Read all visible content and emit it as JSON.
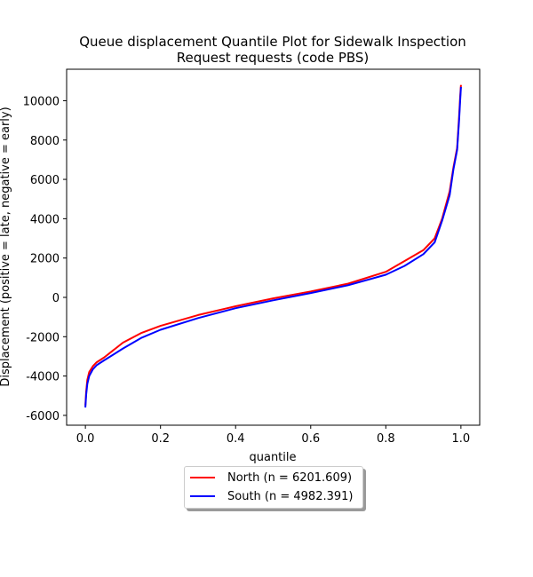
{
  "chart_data": {
    "type": "line",
    "title_line1": "Queue displacement Quantile Plot for Sidewalk Inspection",
    "title_line2": "Request  requests (code PBS)",
    "xlabel": "quantile",
    "ylabel": "Displacement (positive = late, negative = early)",
    "xlim": [
      -0.05,
      1.05
    ],
    "ylim": [
      -6500,
      11600
    ],
    "xticks": [
      "0.0",
      "0.2",
      "0.4",
      "0.6",
      "0.8",
      "1.0"
    ],
    "yticks": [
      "-6000",
      "-4000",
      "-2000",
      "0",
      "2000",
      "4000",
      "6000",
      "8000",
      "10000"
    ],
    "grid": false,
    "legend_position": "below-center",
    "series": [
      {
        "name": "North (n = 6201.609)",
        "color": "#ff0000",
        "x": [
          0.0,
          0.002,
          0.005,
          0.01,
          0.02,
          0.03,
          0.05,
          0.1,
          0.15,
          0.2,
          0.3,
          0.4,
          0.5,
          0.6,
          0.7,
          0.8,
          0.85,
          0.9,
          0.93,
          0.95,
          0.97,
          0.98,
          0.99,
          0.995,
          0.998,
          1.0
        ],
        "y": [
          -5500,
          -4800,
          -4200,
          -3800,
          -3500,
          -3300,
          -3050,
          -2300,
          -1800,
          -1450,
          -900,
          -450,
          -50,
          300,
          700,
          1300,
          1850,
          2400,
          3000,
          4000,
          5400,
          6600,
          7600,
          9200,
          10200,
          10800
        ]
      },
      {
        "name": "South (n = 4982.391)",
        "color": "#0000ff",
        "x": [
          0.0,
          0.002,
          0.005,
          0.01,
          0.02,
          0.03,
          0.05,
          0.1,
          0.15,
          0.2,
          0.3,
          0.4,
          0.5,
          0.6,
          0.7,
          0.8,
          0.85,
          0.9,
          0.93,
          0.95,
          0.97,
          0.98,
          0.99,
          0.995,
          0.998,
          1.0
        ],
        "y": [
          -5600,
          -4950,
          -4400,
          -4000,
          -3650,
          -3450,
          -3200,
          -2600,
          -2050,
          -1650,
          -1050,
          -550,
          -150,
          220,
          620,
          1150,
          1600,
          2200,
          2800,
          3900,
          5200,
          6500,
          7500,
          9000,
          10000,
          10700
        ]
      }
    ]
  }
}
